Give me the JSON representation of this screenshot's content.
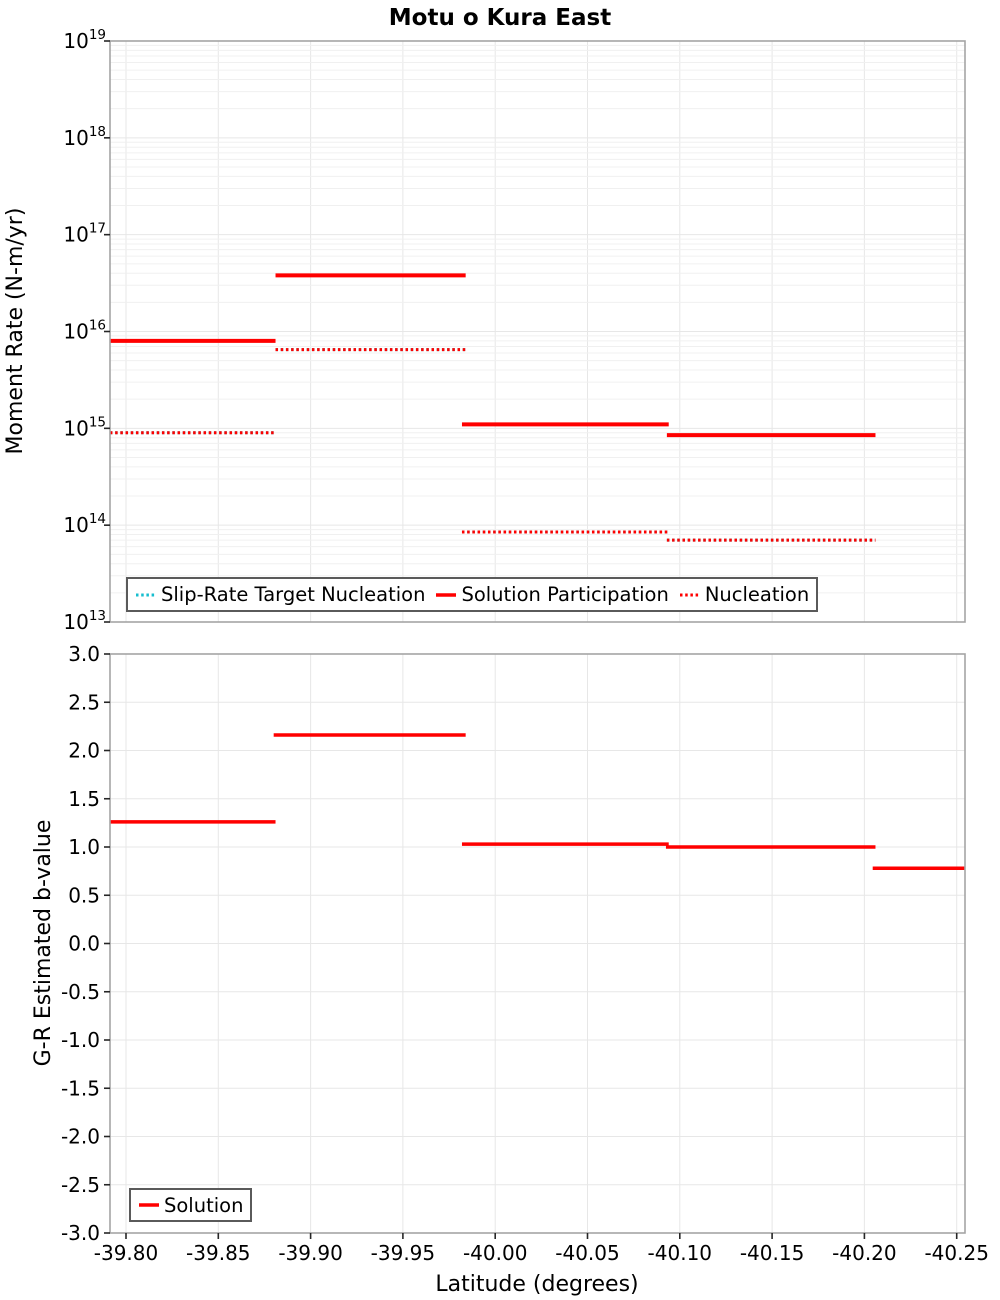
{
  "title": "Motu o Kura East",
  "colors": {
    "solution": "#ff0000",
    "nucleation": "#ff0000",
    "slip_rate_target": "#17becf",
    "grid": "#e7e7e7",
    "grid_minor": "#f0f0f0",
    "frame": "#a5a5a5",
    "text": "#000000"
  },
  "x_axis": {
    "label": "Latitude (degrees)",
    "xlim": [
      -39.7913,
      -40.2545
    ],
    "tick_values": [
      -39.8,
      -39.85,
      -39.9,
      -39.95,
      -40.0,
      -40.05,
      -40.1,
      -40.15,
      -40.2,
      -40.25
    ],
    "tick_labels": [
      "-39.80",
      "-39.85",
      "-39.90",
      "-39.95",
      "-40.00",
      "-40.05",
      "-40.10",
      "-40.15",
      "-40.20",
      "-40.25"
    ],
    "grid": true
  },
  "chart_data": [
    {
      "id": "moment-rate-panel",
      "type": "line",
      "ylabel": "Moment Rate (N-m/yr)",
      "yscale": "log",
      "ylim": [
        10000000000000.0,
        1e+19
      ],
      "y_tick_exponents": [
        19,
        18,
        17,
        16,
        15,
        14,
        13
      ],
      "grid": true,
      "legend_position": "lower-left",
      "legend": [
        {
          "label": "Slip-Rate Target Nucleation",
          "style": "dotted",
          "color_key": "slip_rate_target"
        },
        {
          "label": "Solution Participation",
          "style": "solid",
          "color_key": "solution"
        },
        {
          "label": "Nucleation",
          "style": "dotted",
          "color_key": "nucleation"
        }
      ],
      "segment_format": [
        "lat_start",
        "lat_end",
        "value"
      ],
      "series": [
        {
          "name": "Slip-Rate Target Nucleation",
          "style": "dotted",
          "color": "#17becf",
          "note": "coincides with Nucleation series, hidden beneath it",
          "segments": [
            [
              -39.7913,
              -39.881,
              900000000000000.0
            ],
            [
              -39.881,
              -39.984,
              6500000000000000.0
            ],
            [
              -39.982,
              -40.094,
              85000000000000.0
            ],
            [
              -40.093,
              -40.206,
              70000000000000.0
            ]
          ]
        },
        {
          "name": "Solution Participation",
          "style": "solid",
          "color": "#ff0000",
          "segments": [
            [
              -39.7913,
              -39.881,
              8000000000000000.0
            ],
            [
              -39.881,
              -39.984,
              3.8e+16
            ],
            [
              -39.982,
              -40.094,
              1100000000000000.0
            ],
            [
              -40.093,
              -40.206,
              850000000000000.0
            ]
          ]
        },
        {
          "name": "Nucleation",
          "style": "dotted",
          "color": "#ff0000",
          "segments": [
            [
              -39.7913,
              -39.881,
              900000000000000.0
            ],
            [
              -39.881,
              -39.984,
              6500000000000000.0
            ],
            [
              -39.982,
              -40.094,
              85000000000000.0
            ],
            [
              -40.093,
              -40.206,
              70000000000000.0
            ]
          ]
        }
      ]
    },
    {
      "id": "b-value-panel",
      "type": "line",
      "ylabel": "G-R Estimated b-value",
      "xlabel": "Latitude (degrees)",
      "yscale": "linear",
      "ylim": [
        -3.0,
        3.0
      ],
      "y_tick_values": [
        3.0,
        2.5,
        2.0,
        1.5,
        1.0,
        0.5,
        0.0,
        -0.5,
        -1.0,
        -1.5,
        -2.0,
        -2.5,
        -3.0
      ],
      "y_tick_labels": [
        "3.0",
        "2.5",
        "2.0",
        "1.5",
        "1.0",
        "0.5",
        "0.0",
        "-0.5",
        "-1.0",
        "-1.5",
        "-2.0",
        "-2.5",
        "-3.0"
      ],
      "grid": true,
      "legend_position": "lower-left",
      "legend": [
        {
          "label": "Solution",
          "style": "solid",
          "color_key": "solution"
        }
      ],
      "segment_format": [
        "lat_start",
        "lat_end",
        "value"
      ],
      "series": [
        {
          "name": "Solution",
          "style": "solid",
          "color": "#ff0000",
          "segments": [
            [
              -39.7913,
              -39.881,
              1.26
            ],
            [
              -39.88,
              -39.984,
              2.16
            ],
            [
              -39.982,
              -40.094,
              1.03
            ],
            [
              -40.0925,
              -40.206,
              1.0
            ],
            [
              -40.2045,
              -40.2545,
              0.78
            ]
          ]
        }
      ]
    }
  ]
}
